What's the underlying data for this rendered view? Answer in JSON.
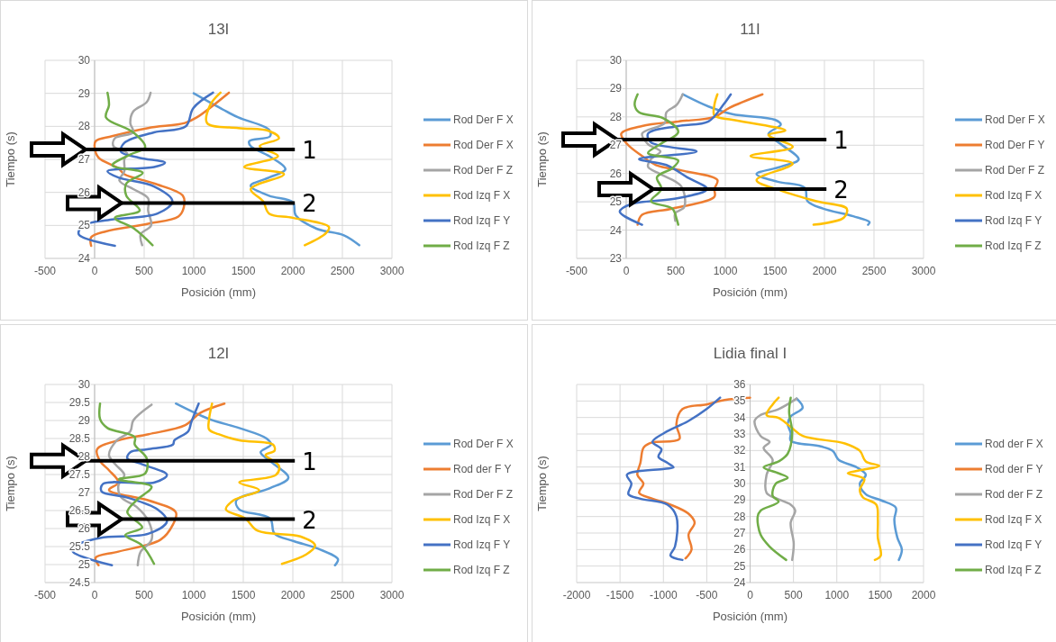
{
  "chart_data": [
    {
      "type": "line",
      "title": "13I",
      "xlabel": "Posición (mm)",
      "ylabel": "Tiempo (s)",
      "xlim": [
        -500,
        3000
      ],
      "xticks": [
        -500,
        0,
        500,
        1000,
        1500,
        2000,
        2500,
        3000
      ],
      "ylim": [
        24,
        30
      ],
      "yticks": [
        24,
        25,
        26,
        27,
        28,
        29,
        30
      ],
      "grid": true,
      "legend": "right",
      "ref_lines": [
        {
          "axis": "y",
          "value": 27.3,
          "color": "#000000"
        },
        {
          "axis": "y",
          "value": 25.68,
          "color": "#000000"
        }
      ],
      "annotations": [
        "1",
        "2"
      ],
      "series": [
        {
          "name": "Rod Der F X",
          "color": "#5b9bd5",
          "x": [
            1000,
            1300,
            1450,
            1760,
            1770,
            1560,
            1575,
            1760,
            1925,
            1760,
            1575,
            1760,
            2000,
            2030,
            2240,
            2515,
            2670
          ],
          "values": [
            29.0,
            28.5,
            28.27,
            27.9,
            27.7,
            27.55,
            27.4,
            27.1,
            26.7,
            26.45,
            26.2,
            25.9,
            25.7,
            25.3,
            24.9,
            24.7,
            24.4
          ]
        },
        {
          "name": "Rod Der F X",
          "color": "#ed7d31",
          "x": [
            1355,
            1030,
            910,
            540,
            175,
            10,
            0,
            40,
            240,
            300,
            600,
            890,
            900,
            845,
            540,
            115,
            -35,
            -35
          ],
          "values": [
            29.02,
            28.27,
            28.1,
            27.95,
            27.7,
            27.55,
            27.37,
            27.05,
            26.73,
            26.55,
            26.27,
            25.9,
            25.55,
            25.27,
            25.05,
            24.82,
            24.64,
            24.38
          ]
        },
        {
          "name": "Rod Der F Z",
          "color": "#a5a5a5",
          "x": [
            565,
            525,
            390,
            360,
            390,
            205,
            190,
            330,
            300,
            300,
            250,
            390,
            540,
            540,
            570,
            465,
            480
          ],
          "values": [
            29.02,
            28.73,
            28.45,
            28.1,
            27.82,
            27.64,
            27.4,
            27.18,
            27.0,
            26.64,
            26.36,
            26.1,
            25.82,
            25.45,
            25.0,
            24.73,
            24.4
          ]
        },
        {
          "name": "Rod Izq F X",
          "color": "#ffc000",
          "x": [
            1270,
            1165,
            1135,
            1450,
            1760,
            1860,
            1665,
            1850,
            1510,
            1910,
            1575,
            1700,
            1760,
            2000,
            2365,
            2335,
            2120
          ],
          "values": [
            29.02,
            28.64,
            28.1,
            27.95,
            27.86,
            27.64,
            27.4,
            27.1,
            26.77,
            26.55,
            26.1,
            25.73,
            25.36,
            25.23,
            24.95,
            24.77,
            24.4
          ]
        },
        {
          "name": "Rod Izq F Y",
          "color": "#4472c4",
          "x": [
            1195,
            995,
            920,
            600,
            300,
            265,
            450,
            710,
            600,
            130,
            240,
            600,
            785,
            635,
            175,
            -115,
            -160,
            205
          ],
          "values": [
            29.02,
            28.55,
            28.0,
            27.82,
            27.5,
            27.23,
            27.05,
            26.9,
            26.77,
            26.64,
            26.45,
            26.18,
            25.73,
            25.36,
            25.18,
            25.0,
            24.73,
            24.38
          ]
        },
        {
          "name": "Rod Izq F Z",
          "color": "#70ad47",
          "x": [
            130,
            145,
            115,
            390,
            510,
            355,
            180,
            485,
            320,
            320,
            455,
            205,
            400,
            585
          ],
          "values": [
            29.02,
            28.64,
            28.27,
            27.82,
            27.37,
            27.14,
            26.82,
            26.59,
            26.27,
            25.9,
            25.45,
            25.23,
            24.9,
            24.4
          ]
        }
      ]
    },
    {
      "type": "line",
      "title": "11I",
      "xlabel": "Posición (mm)",
      "ylabel": "Tiempo (s)",
      "xlim": [
        -500,
        3000
      ],
      "xticks": [
        -500,
        0,
        500,
        1000,
        1500,
        2000,
        2500,
        3000
      ],
      "ylim": [
        23,
        30
      ],
      "yticks": [
        23,
        24,
        25,
        26,
        27,
        28,
        29,
        30
      ],
      "grid": true,
      "legend": "right",
      "ref_lines": [
        {
          "axis": "y",
          "value": 27.2,
          "color": "#000000"
        },
        {
          "axis": "y",
          "value": 25.45,
          "color": "#000000"
        }
      ],
      "annotations": [
        "1",
        "2"
      ],
      "series": [
        {
          "name": "Rod Der F X",
          "color": "#5b9bd5",
          "x": [
            570,
            830,
            1070,
            1500,
            1560,
            1435,
            1560,
            1740,
            1560,
            1315,
            1530,
            1800,
            1830,
            1985,
            2290,
            2455,
            2440
          ],
          "values": [
            28.8,
            28.37,
            28.1,
            27.9,
            27.73,
            27.4,
            27.04,
            26.5,
            26.24,
            25.98,
            25.71,
            25.5,
            25.02,
            24.76,
            24.49,
            24.28,
            24.19
          ]
        },
        {
          "name": "Rod Der F Y",
          "color": "#ed7d31",
          "x": [
            1375,
            1040,
            890,
            525,
            160,
            -50,
            10,
            160,
            300,
            585,
            920,
            890,
            890,
            465,
            160,
            115
          ],
          "values": [
            28.8,
            28.32,
            28.0,
            27.84,
            27.68,
            27.41,
            27.04,
            26.62,
            26.3,
            26.09,
            25.77,
            25.45,
            25.18,
            24.76,
            24.54,
            24.19
          ]
        },
        {
          "name": "Rod Der F Z",
          "color": "#a5a5a5",
          "x": [
            570,
            510,
            405,
            390,
            160,
            220,
            345,
            250,
            220,
            345,
            555,
            585,
            495,
            495
          ],
          "values": [
            28.8,
            28.43,
            28.16,
            27.79,
            27.41,
            27.04,
            26.78,
            26.51,
            26.24,
            25.98,
            25.55,
            24.81,
            24.6,
            24.33
          ]
        },
        {
          "name": "Rod Izq F X",
          "color": "#ffc000",
          "x": [
            920,
            890,
            890,
            1070,
            1435,
            1605,
            1435,
            1680,
            1255,
            1680,
            1315,
            1560,
            1920,
            2225,
            2195,
            1890
          ],
          "values": [
            28.8,
            28.43,
            28.05,
            27.9,
            27.68,
            27.52,
            27.36,
            26.94,
            26.62,
            26.35,
            25.77,
            25.4,
            25.02,
            24.76,
            24.44,
            24.19
          ]
        },
        {
          "name": "Rod Izq F Y",
          "color": "#4472c4",
          "x": [
            1055,
            980,
            830,
            525,
            220,
            250,
            710,
            130,
            405,
            615,
            815,
            525,
            40,
            -65,
            160
          ],
          "values": [
            28.8,
            28.43,
            27.84,
            27.68,
            27.41,
            27.1,
            26.78,
            26.51,
            26.3,
            25.87,
            25.45,
            25.13,
            24.91,
            24.65,
            24.19
          ]
        },
        {
          "name": "Rod Izq F Z",
          "color": "#70ad47",
          "x": [
            115,
            85,
            130,
            375,
            525,
            345,
            220,
            525,
            465,
            310,
            355,
            250,
            465,
            510,
            525
          ],
          "values": [
            28.8,
            28.43,
            28.16,
            27.95,
            27.47,
            27.04,
            26.72,
            26.46,
            26.19,
            25.87,
            25.45,
            25.02,
            24.76,
            24.38,
            24.19
          ]
        }
      ]
    },
    {
      "type": "line",
      "title": "12I",
      "xlabel": "Posición (mm)",
      "ylabel": "Tiempo (s)",
      "xlim": [
        -500,
        3000
      ],
      "xticks": [
        -500,
        0,
        500,
        1000,
        1500,
        2000,
        2500,
        3000
      ],
      "ylim": [
        24.5,
        30
      ],
      "yticks": [
        24.5,
        25,
        25.5,
        26,
        26.5,
        27,
        27.5,
        28,
        28.5,
        29,
        29.5,
        30
      ],
      "grid": true,
      "legend": "right",
      "ref_lines": [
        {
          "axis": "y",
          "value": 27.88,
          "color": "#000000"
        },
        {
          "axis": "y",
          "value": 26.26,
          "color": "#000000"
        }
      ],
      "annotations": [
        "1",
        "2"
      ],
      "series": [
        {
          "name": "Rod Der F X",
          "color": "#5b9bd5",
          "x": [
            820,
            1155,
            1460,
            1735,
            1780,
            1675,
            1770,
            1955,
            1770,
            1430,
            1460,
            1770,
            1815,
            2010,
            2255,
            2455,
            2425
          ],
          "values": [
            29.47,
            29.04,
            28.79,
            28.5,
            28.33,
            28.12,
            27.87,
            27.41,
            27.12,
            26.78,
            26.53,
            26.28,
            25.86,
            25.65,
            25.44,
            25.15,
            24.98
          ]
        },
        {
          "name": "Rod der F Y",
          "color": "#ed7d31",
          "x": [
            1310,
            1065,
            915,
            545,
            240,
            25,
            55,
            145,
            240,
            145,
            545,
            820,
            790,
            665,
            240,
            10,
            40
          ],
          "values": [
            29.47,
            29.21,
            28.87,
            28.62,
            28.45,
            28.2,
            27.87,
            27.62,
            27.28,
            27.07,
            26.78,
            26.45,
            26.11,
            25.69,
            25.36,
            25.19,
            24.98
          ]
        },
        {
          "name": "Rod Der F Z",
          "color": "#a5a5a5",
          "x": [
            575,
            390,
            360,
            225,
            145,
            210,
            300,
            240,
            270,
            420,
            545,
            575,
            465,
            435
          ],
          "values": [
            29.44,
            29.0,
            28.7,
            28.45,
            28.04,
            27.78,
            27.49,
            27.2,
            26.86,
            26.61,
            26.2,
            25.69,
            25.36,
            24.98
          ]
        },
        {
          "name": "Rod Izq F X",
          "color": "#ffc000",
          "x": [
            1185,
            1155,
            1155,
            1250,
            1460,
            1800,
            1815,
            1725,
            1860,
            1830,
            1460,
            1660,
            1400,
            1325,
            1520,
            1645,
            2075,
            2225,
            2135,
            1890
          ],
          "values": [
            29.47,
            29.04,
            28.75,
            28.62,
            28.45,
            28.33,
            28.16,
            28.04,
            27.74,
            27.49,
            27.28,
            27.07,
            26.78,
            26.53,
            26.28,
            25.94,
            25.78,
            25.53,
            25.28,
            25.02
          ]
        },
        {
          "name": "Rod Izq F Y",
          "color": "#4472c4",
          "x": [
            1050,
            975,
            945,
            805,
            790,
            530,
            360,
            330,
            485,
            730,
            605,
            85,
            70,
            330,
            635,
            730,
            545,
            55,
            -190,
            -220,
            175
          ],
          "values": [
            29.47,
            28.95,
            28.7,
            28.45,
            28.33,
            28.2,
            28.12,
            27.95,
            27.78,
            27.49,
            27.28,
            27.24,
            27.03,
            26.86,
            26.53,
            26.2,
            25.86,
            25.74,
            25.53,
            25.36,
            24.98
          ]
        },
        {
          "name": "Rod Izq F Z",
          "color": "#70ad47",
          "x": [
            55,
            55,
            130,
            405,
            405,
            525,
            510,
            245,
            575,
            420,
            330,
            480,
            310,
            480,
            600
          ],
          "values": [
            29.47,
            29.04,
            28.79,
            28.54,
            28.33,
            27.95,
            27.53,
            27.37,
            27.16,
            26.78,
            26.45,
            26.03,
            25.82,
            25.53,
            25.02
          ]
        }
      ]
    },
    {
      "type": "line",
      "title": "Lidia final I",
      "xlabel": "Posición (mm)",
      "ylabel": "Tiempo (s)",
      "xlim": [
        -2000,
        2000
      ],
      "xticks": [
        -2000,
        -1500,
        -1000,
        -500,
        0,
        500,
        1000,
        1500,
        2000
      ],
      "ylim": [
        24,
        36
      ],
      "yticks": [
        24,
        25,
        26,
        27,
        28,
        29,
        30,
        31,
        32,
        33,
        34,
        35,
        36
      ],
      "grid": true,
      "legend": "right",
      "series": [
        {
          "name": "Rod der F X",
          "color": "#5b9bd5",
          "x": [
            537,
            606,
            468,
            433,
            468,
            468,
            814,
            953,
            1022,
            1230,
            1334,
            1265,
            1334,
            1507,
            1680,
            1663,
            1698,
            1750,
            1715
          ],
          "values": [
            35.15,
            34.6,
            34.06,
            33.6,
            33.07,
            32.6,
            32.25,
            31.98,
            31.43,
            30.98,
            30.53,
            29.99,
            29.35,
            28.99,
            28.54,
            27.81,
            26.72,
            26.0,
            25.37
          ]
        },
        {
          "name": "Rod der F Y",
          "color": "#ed7d31",
          "x": [
            0,
            -295,
            -502,
            -780,
            -850,
            -815,
            -1090,
            -1160,
            -1230,
            -1265,
            -1300,
            -1230,
            -1280,
            -1125,
            -918,
            -710,
            -640,
            -710,
            -675,
            -745
          ],
          "values": [
            35.2,
            35.06,
            34.79,
            34.51,
            33.6,
            32.7,
            32.52,
            32.43,
            32.16,
            31.25,
            30.53,
            29.99,
            29.44,
            29.08,
            28.72,
            28.17,
            27.63,
            26.9,
            26.0,
            25.46
          ]
        },
        {
          "name": "Rod der F Z",
          "color": "#a5a5a5",
          "x": [
            537,
            329,
            121,
            52,
            121,
            225,
            156,
            260,
            190,
            190,
            312,
            468,
            520,
            468,
            503,
            485
          ],
          "values": [
            35.15,
            34.51,
            34.15,
            33.79,
            32.88,
            32.52,
            32.16,
            31.43,
            30.53,
            29.44,
            29.08,
            28.72,
            28.36,
            27.63,
            26.36,
            25.37
          ]
        },
        {
          "name": "Rod Izq F X",
          "color": "#ffc000",
          "x": [
            329,
            260,
            190,
            329,
            468,
            607,
            1092,
            1265,
            1334,
            1490,
            1265,
            1126,
            1317,
            1265,
            1300,
            1455,
            1473,
            1473,
            1507,
            1438
          ],
          "values": [
            35.2,
            34.79,
            34.15,
            33.97,
            33.43,
            32.88,
            32.43,
            31.98,
            31.34,
            31.07,
            30.8,
            30.62,
            30.26,
            29.62,
            29.17,
            28.72,
            27.81,
            26.72,
            25.64,
            25.37
          ]
        },
        {
          "name": "Rod Izq F Y",
          "color": "#4472c4",
          "x": [
            -346,
            -502,
            -710,
            -988,
            -1126,
            -1022,
            -1057,
            -953,
            -883,
            -988,
            -1420,
            -1369,
            -1403,
            -1265,
            -953,
            -849,
            -866,
            -918,
            -780
          ],
          "values": [
            35.2,
            34.51,
            33.79,
            33.07,
            32.52,
            32.07,
            31.62,
            31.25,
            30.98,
            30.89,
            30.53,
            29.99,
            29.35,
            29.08,
            28.72,
            27.99,
            26.18,
            25.64,
            25.37
          ]
        },
        {
          "name": "Rod Izq F Z",
          "color": "#70ad47",
          "x": [
            468,
            450,
            485,
            433,
            329,
            156,
            329,
            433,
            295,
            260,
            329,
            121,
            87,
            121,
            225,
            416
          ],
          "values": [
            35.2,
            34.33,
            33.07,
            31.8,
            31.34,
            30.98,
            30.62,
            30.35,
            29.99,
            29.26,
            28.9,
            28.36,
            27.99,
            26.9,
            26.18,
            25.37
          ]
        }
      ]
    }
  ]
}
